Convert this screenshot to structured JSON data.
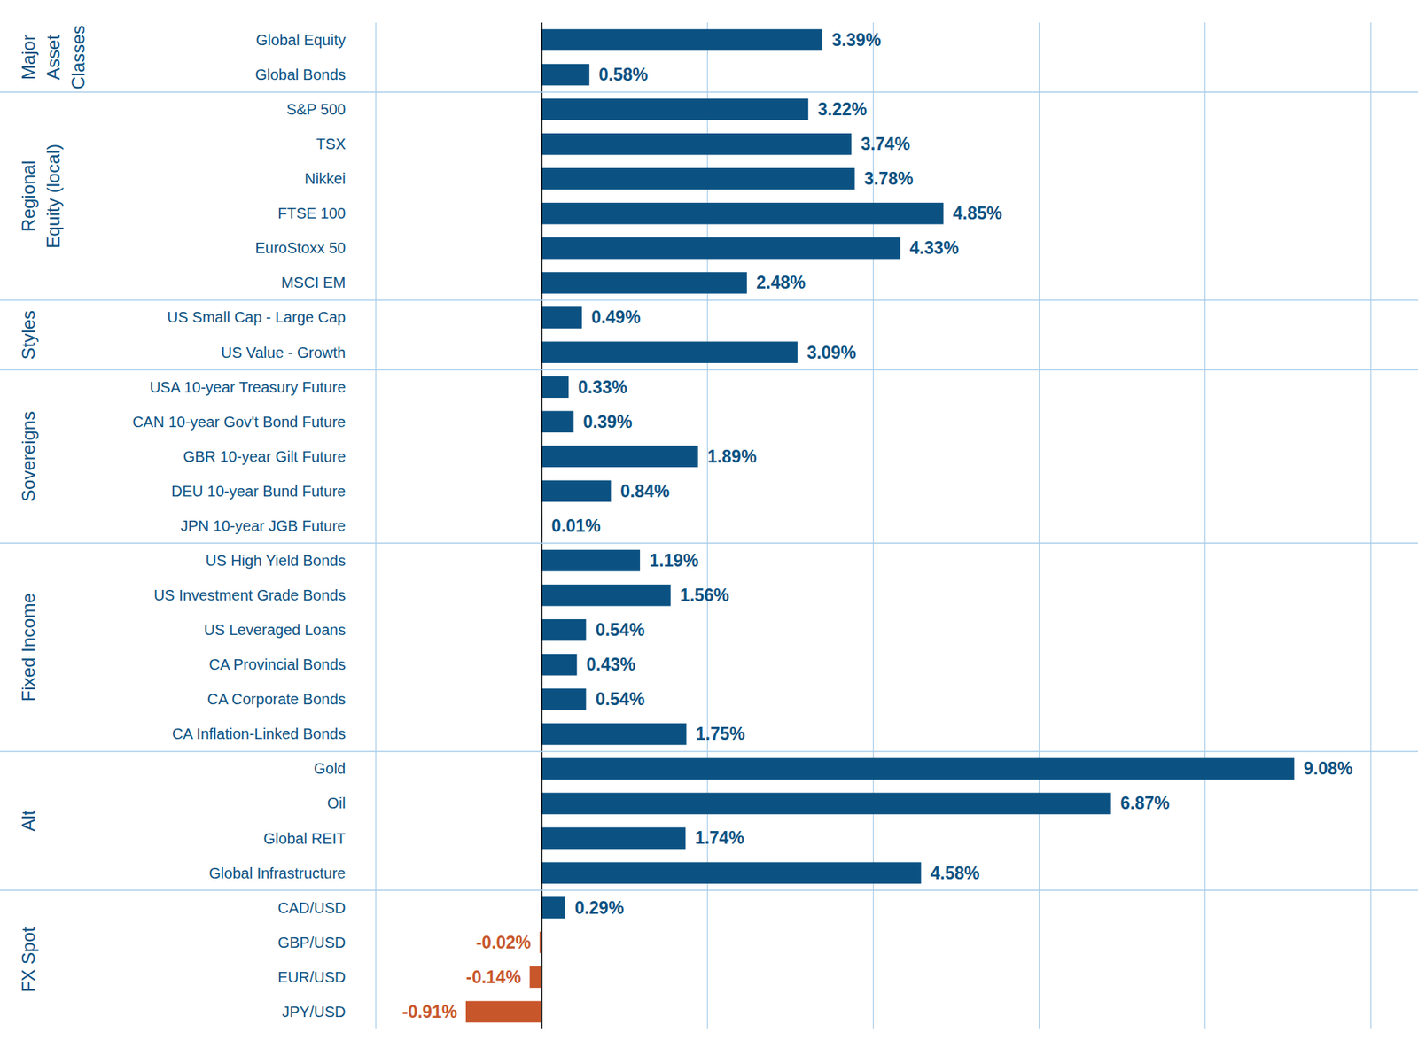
{
  "chart_data": {
    "type": "bar",
    "orientation": "horizontal",
    "groups": [
      "Major\nAsset\nClasses",
      "Major\nAsset\nClasses",
      "Regional\nEquity (local)",
      "Regional\nEquity (local)",
      "Regional\nEquity (local)",
      "Regional\nEquity (local)",
      "Regional\nEquity (local)",
      "Regional\nEquity (local)",
      "Styles",
      "Styles",
      "Sovereigns",
      "Sovereigns",
      "Sovereigns",
      "Sovereigns",
      "Sovereigns",
      "Fixed Income",
      "Fixed Income",
      "Fixed Income",
      "Fixed Income",
      "Fixed Income",
      "Fixed Income",
      "Alt",
      "Alt",
      "Alt",
      "Alt",
      "FX Spot",
      "FX Spot",
      "FX Spot",
      "FX Spot"
    ],
    "categories": [
      "Global Equity",
      "Global Bonds",
      "S&P 500",
      "TSX",
      "Nikkei",
      "FTSE 100",
      "EuroStoxx 50",
      "MSCI EM",
      "US Small Cap - Large Cap",
      "US Value - Growth",
      "USA 10-year Treasury Future",
      "CAN 10-year Gov't Bond Future",
      "GBR 10-year Gilt Future",
      "DEU 10-year Bund Future",
      "JPN 10-year JGB Future",
      "US High Yield Bonds",
      "US Investment Grade Bonds",
      "US Leveraged Loans",
      "CA Provincial Bonds",
      "CA Corporate Bonds",
      "CA Inflation-Linked Bonds",
      "Gold",
      "Oil",
      "Global REIT",
      "Global Infrastructure",
      "CAD/USD",
      "GBP/USD",
      "EUR/USD",
      "JPY/USD"
    ],
    "values": [
      3.39,
      0.58,
      3.22,
      3.74,
      3.78,
      4.85,
      4.33,
      2.48,
      0.49,
      3.09,
      0.33,
      0.39,
      1.89,
      0.84,
      0.01,
      1.19,
      1.56,
      0.54,
      0.43,
      0.54,
      1.75,
      9.08,
      6.87,
      1.74,
      4.58,
      0.29,
      -0.02,
      -0.14,
      -0.91
    ],
    "value_labels": [
      "3.39%",
      "0.58%",
      "3.22%",
      "3.74%",
      "3.78%",
      "4.85%",
      "4.33%",
      "2.48%",
      "0.49%",
      "3.09%",
      "0.33%",
      "0.39%",
      "1.89%",
      "0.84%",
      "0.01%",
      "1.19%",
      "1.56%",
      "0.54%",
      "0.43%",
      "0.54%",
      "1.75%",
      "9.08%",
      "6.87%",
      "1.74%",
      "4.58%",
      "0.29%",
      "-0.02%",
      "-0.14%",
      "-0.91%"
    ],
    "colors": [
      "#0b5283",
      "#0b5283",
      "#0b5283",
      "#0b5283",
      "#0b5283",
      "#0b5283",
      "#0b5283",
      "#0b5283",
      "#0b5283",
      "#0b5283",
      "#0b5283",
      "#0b5283",
      "#0b5283",
      "#0b5283",
      "#0b5283",
      "#0b5283",
      "#0b5283",
      "#0b5283",
      "#0b5283",
      "#0b5283",
      "#0b5283",
      "#0b5283",
      "#0b5283",
      "#0b5283",
      "#0b5283",
      "#0b5283",
      "#c8562b",
      "#c8562b",
      "#c8562b"
    ],
    "xlim": [
      -2,
      10
    ],
    "xticks": [
      -2,
      0,
      2,
      4,
      6,
      8,
      10
    ],
    "grid": true,
    "data_labels": true,
    "tick_labels": "y"
  }
}
